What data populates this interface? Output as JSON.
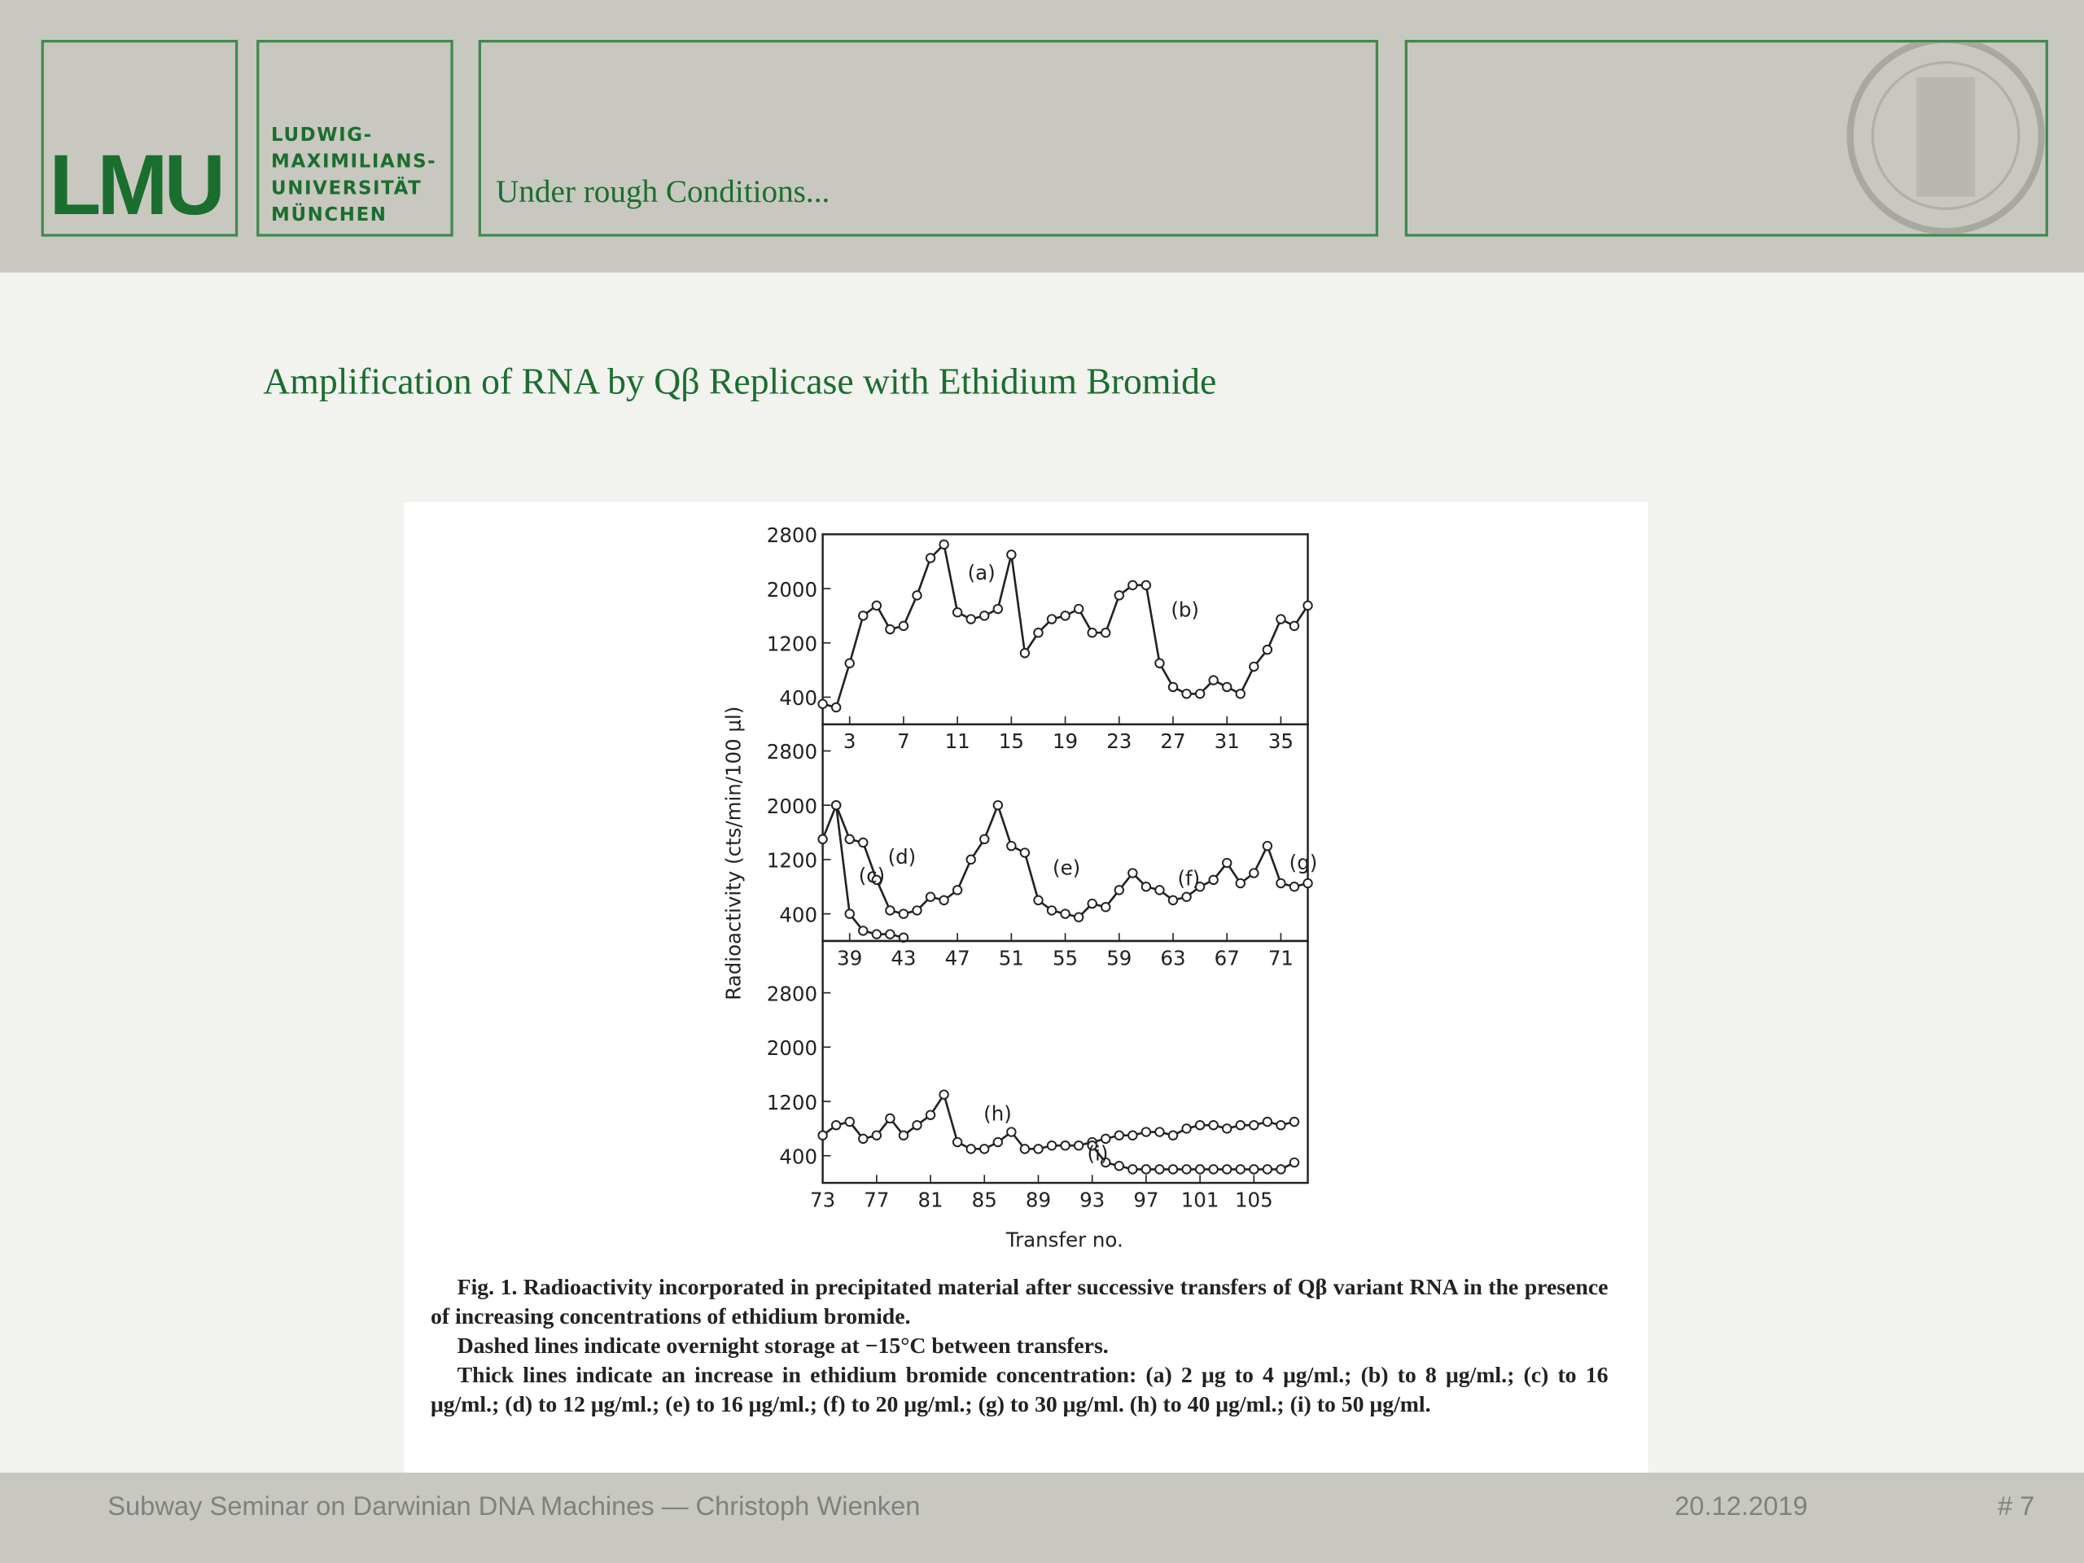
{
  "header": {
    "logo": "LMU",
    "university": [
      "LUDWIG-",
      "MAXIMILIANS-",
      "UNIVERSITÄT",
      "MÜNCHEN"
    ],
    "title": "Under rough Conditions..."
  },
  "slide_title": "Amplification of RNA by Qβ Replicase with Ethidium Bromide",
  "chart_data": [
    {
      "type": "line",
      "xlim": [
        1,
        37
      ],
      "ylim": [
        0,
        2800
      ],
      "xticks": [
        3,
        7,
        11,
        15,
        19,
        23,
        27,
        31,
        35
      ],
      "yticks": [
        400,
        1200,
        2000,
        2800
      ],
      "annotations": [
        "(a)",
        "(b)"
      ],
      "series": [
        {
          "color": "#222222",
          "x": [
            1,
            2,
            3,
            4,
            5,
            6,
            7,
            8,
            9,
            10,
            11,
            12,
            13,
            14,
            15,
            16,
            17,
            18,
            19,
            20,
            21,
            22,
            23,
            24,
            25,
            26,
            27,
            28,
            29,
            30,
            31,
            32,
            33,
            34,
            35,
            36,
            37
          ],
          "values": [
            300,
            250,
            900,
            1600,
            1750,
            1400,
            1450,
            1900,
            2450,
            2650,
            1650,
            1550,
            1600,
            1700,
            2500,
            1050,
            1350,
            1550,
            1600,
            1700,
            1350,
            1350,
            1900,
            2050,
            2050,
            900,
            550,
            450,
            450,
            650,
            550,
            450,
            850,
            1100,
            1550,
            1450,
            1750
          ]
        }
      ]
    },
    {
      "type": "line",
      "xlim": [
        37,
        73
      ],
      "ylim": [
        0,
        2800
      ],
      "xticks": [
        39,
        43,
        47,
        51,
        55,
        59,
        63,
        67,
        71
      ],
      "yticks": [
        400,
        1200,
        2000,
        2800
      ],
      "ylabel": "Radioactivity (cts/min/100 μl)",
      "annotations": [
        "(c)",
        "(d)",
        "(e)",
        "(f)",
        "(g)"
      ],
      "series": [
        {
          "color": "#222222",
          "x": [
            37,
            38,
            39,
            40,
            41,
            42,
            43,
            44,
            45,
            46,
            47,
            48,
            49,
            50,
            51,
            52,
            53,
            54,
            55,
            56,
            57,
            58,
            59,
            60,
            61,
            62,
            63,
            64,
            65,
            66,
            67,
            68,
            69,
            70,
            71,
            72,
            73
          ],
          "values": [
            1500,
            2000,
            1500,
            1450,
            900,
            450,
            400,
            450,
            650,
            600,
            750,
            1200,
            1500,
            2000,
            1400,
            1300,
            600,
            450,
            400,
            350,
            550,
            500,
            750,
            1000,
            800,
            750,
            600,
            650,
            800,
            900,
            1150,
            850,
            1000,
            1400,
            850,
            800,
            850
          ]
        },
        {
          "color": "#222222",
          "x": [
            38,
            39,
            40,
            41,
            42,
            43
          ],
          "values": [
            2000,
            400,
            150,
            100,
            100,
            50
          ]
        }
      ]
    },
    {
      "type": "line",
      "xlim": [
        73,
        109
      ],
      "ylim": [
        0,
        2800
      ],
      "xticks": [
        73,
        77,
        81,
        85,
        89,
        93,
        97,
        101,
        105
      ],
      "yticks": [
        400,
        1200,
        2000,
        2800
      ],
      "xlabel": "Transfer no.",
      "annotations": [
        "(h)",
        "(i)"
      ],
      "series": [
        {
          "color": "#222222",
          "x": [
            73,
            74,
            75,
            76,
            77,
            78,
            79,
            80,
            81,
            82,
            83,
            84,
            85,
            86,
            87,
            88,
            89,
            90,
            91,
            92,
            93,
            94,
            95,
            96,
            97,
            98,
            99,
            100,
            101,
            102,
            103,
            104,
            105,
            106,
            107,
            108
          ],
          "values": [
            700,
            850,
            900,
            650,
            700,
            950,
            700,
            850,
            1000,
            1300,
            600,
            500,
            500,
            600,
            750,
            500,
            500,
            550,
            550,
            550,
            600,
            650,
            700,
            700,
            750,
            750,
            700,
            800,
            850,
            850,
            800,
            850,
            850,
            900,
            850,
            900
          ]
        },
        {
          "color": "#222222",
          "x": [
            93,
            94,
            95,
            96,
            97,
            98,
            99,
            100,
            101,
            102,
            103,
            104,
            105,
            106,
            107,
            108
          ],
          "values": [
            550,
            300,
            250,
            200,
            200,
            200,
            200,
            200,
            200,
            200,
            200,
            200,
            200,
            200,
            200,
            300
          ]
        }
      ]
    }
  ],
  "caption": [
    "Fig. 1. Radioactivity incorporated in precipitated material after successive transfers of Qβ variant RNA in the presence of increasing concentrations of ethidium bromide.",
    "Dashed lines indicate overnight storage at −15°C between transfers.",
    "Thick lines indicate an increase in ethidium bromide concentration: (a) 2 μg to 4 μg/ml.; (b) to 8 μg/ml.; (c) to 16 μg/ml.; (d) to 12 μg/ml.; (e) to 16 μg/ml.; (f) to 20 μg/ml.; (g) to 30 μg/ml. (h) to 40 μg/ml.; (i) to 50 μg/ml."
  ],
  "footer": {
    "text": "Subway Seminar on Darwinian DNA Machines — Christoph Wienken",
    "date": "20.12.2019",
    "page": "# 7"
  }
}
